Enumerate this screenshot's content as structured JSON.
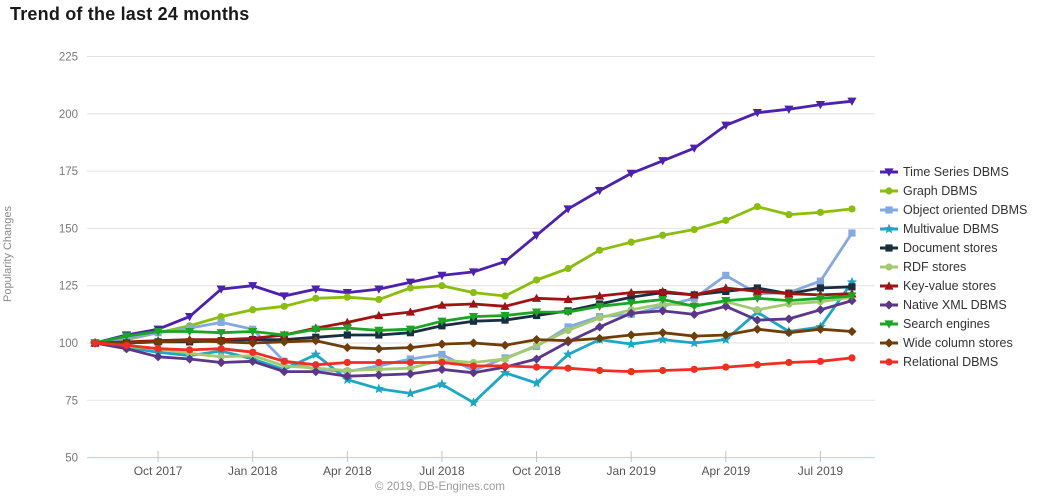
{
  "title": "Trend of the last 24 months",
  "footer": "© 2019, DB-Engines.com",
  "y_axis": {
    "label": "Popularity Changes",
    "ticks": [
      225,
      200,
      175,
      150,
      125,
      100,
      75,
      50
    ]
  },
  "x_axis": {
    "tick_labels": [
      "Oct 2017",
      "Jan 2018",
      "Apr 2018",
      "Jul 2018",
      "Oct 2018",
      "Jan 2019",
      "Apr 2019",
      "Jul 2019"
    ],
    "tick_month_indices": [
      2,
      5,
      8,
      11,
      14,
      17,
      20,
      23
    ]
  },
  "colors": {
    "grid": "#e2e2e2",
    "baseline": "#b3d0e8",
    "tick": "#bcc4ca"
  },
  "chart_data": {
    "type": "line",
    "title": "Trend of the last 24 months",
    "xlabel": "",
    "ylabel": "Popularity Changes",
    "ylim": [
      50,
      225
    ],
    "grid": true,
    "legend_position": "right",
    "x": [
      "Aug 2017",
      "Sep 2017",
      "Oct 2017",
      "Nov 2017",
      "Dec 2017",
      "Jan 2018",
      "Feb 2018",
      "Mar 2018",
      "Apr 2018",
      "May 2018",
      "Jun 2018",
      "Jul 2018",
      "Aug 2018",
      "Sep 2018",
      "Oct 2018",
      "Nov 2018",
      "Dec 2018",
      "Jan 2019",
      "Feb 2019",
      "Mar 2019",
      "Apr 2019",
      "May 2019",
      "Jun 2019",
      "Jul 2019",
      "Aug 2019"
    ],
    "series": [
      {
        "name": "Time Series DBMS",
        "color": "#4c20b0",
        "marker": "triangle-down",
        "values": [
          100,
          103.5,
          106,
          111.5,
          123.5,
          125,
          120.5,
          123.5,
          122,
          123.5,
          126.5,
          129.5,
          131,
          135.5,
          147,
          158.5,
          166.5,
          174,
          179.5,
          185,
          195,
          200.5,
          202,
          204,
          205.5
        ]
      },
      {
        "name": "Graph DBMS",
        "color": "#8bbd0d",
        "marker": "circle",
        "values": [
          100,
          101.5,
          104.5,
          107.5,
          111.5,
          114.5,
          116,
          119.5,
          120,
          119,
          124,
          125,
          122,
          120.5,
          127.5,
          132.5,
          140.5,
          144,
          147,
          149.5,
          153.5,
          159.5,
          156,
          157,
          158.5
        ]
      },
      {
        "name": "Object oriented DBMS",
        "color": "#84a9e2",
        "marker": "square",
        "values": [
          100,
          102,
          104.5,
          106.5,
          109,
          106,
          92,
          88.5,
          87.5,
          90,
          93,
          95,
          88,
          93.5,
          98.5,
          107,
          111.5,
          112.5,
          116,
          119.5,
          129.5,
          121.5,
          122,
          127,
          148
        ]
      },
      {
        "name": "Multivalue DBMS",
        "color": "#1ba8c2",
        "marker": "star",
        "values": [
          100,
          98,
          96,
          94.5,
          96.5,
          93,
          88.5,
          95,
          84,
          80,
          78,
          82,
          74,
          87,
          82.5,
          95,
          101.5,
          99.5,
          101.5,
          100,
          101.5,
          113.5,
          105,
          107,
          126.5
        ]
      },
      {
        "name": "Document stores",
        "color": "#1a2e42",
        "marker": "square",
        "values": [
          100,
          100,
          100.5,
          100.5,
          101,
          101.5,
          101.5,
          102.5,
          103.5,
          103.5,
          104.5,
          107.5,
          109.5,
          110,
          112,
          114,
          117,
          120,
          122,
          121,
          122.5,
          124,
          121.5,
          124,
          124.5
        ]
      },
      {
        "name": "RDF stores",
        "color": "#a2cb70",
        "marker": "circle",
        "values": [
          100,
          98.5,
          97.5,
          95.5,
          94,
          94.5,
          90,
          89,
          88,
          88.5,
          89,
          92.5,
          91.5,
          93,
          99,
          105.5,
          111,
          114.5,
          117,
          116.5,
          118,
          114.5,
          117,
          118,
          120
        ]
      },
      {
        "name": "Key-value stores",
        "color": "#9e1414",
        "marker": "triangle-up",
        "values": [
          100,
          100.5,
          101,
          101.5,
          101.5,
          102,
          103.5,
          106.5,
          109,
          112,
          113.5,
          116.5,
          117,
          116,
          119.5,
          119,
          120.5,
          122,
          122.5,
          121,
          124,
          122.5,
          121.5,
          121,
          121.5
        ]
      },
      {
        "name": "Native XML DBMS",
        "color": "#5a3787",
        "marker": "diamond",
        "values": [
          100,
          97.5,
          94,
          93,
          91.5,
          92,
          87.5,
          87.5,
          85.5,
          86,
          86.5,
          88.5,
          87,
          89.5,
          93,
          100.5,
          107,
          113,
          114,
          112.5,
          116,
          110,
          110.5,
          114.5,
          118.5
        ]
      },
      {
        "name": "Search engines",
        "color": "#1ca423",
        "marker": "triangle-down",
        "values": [
          100,
          103,
          105,
          105,
          104.5,
          105,
          103.5,
          106,
          106.5,
          105.5,
          106,
          109.5,
          111.5,
          112,
          113.5,
          113.5,
          116,
          117.5,
          119,
          116,
          118.5,
          119.5,
          118.5,
          119.5,
          120.5
        ]
      },
      {
        "name": "Wide column stores",
        "color": "#6f3e08",
        "marker": "diamond",
        "values": [
          100,
          100,
          100.5,
          101,
          100.5,
          100,
          100.5,
          101,
          98,
          97.5,
          98,
          99.5,
          100,
          99,
          101.5,
          101,
          102,
          103.5,
          104.5,
          103,
          103.5,
          106,
          104.5,
          106,
          105
        ]
      },
      {
        "name": "Relational DBMS",
        "color": "#ef2e24",
        "marker": "circle",
        "values": [
          100,
          99,
          97.5,
          97,
          97.5,
          96,
          92,
          90.5,
          91.5,
          91.5,
          91.5,
          91.5,
          90,
          90,
          89.5,
          89,
          88,
          87.5,
          88,
          88.5,
          89.5,
          90.5,
          91.5,
          92,
          93.5
        ]
      }
    ]
  }
}
